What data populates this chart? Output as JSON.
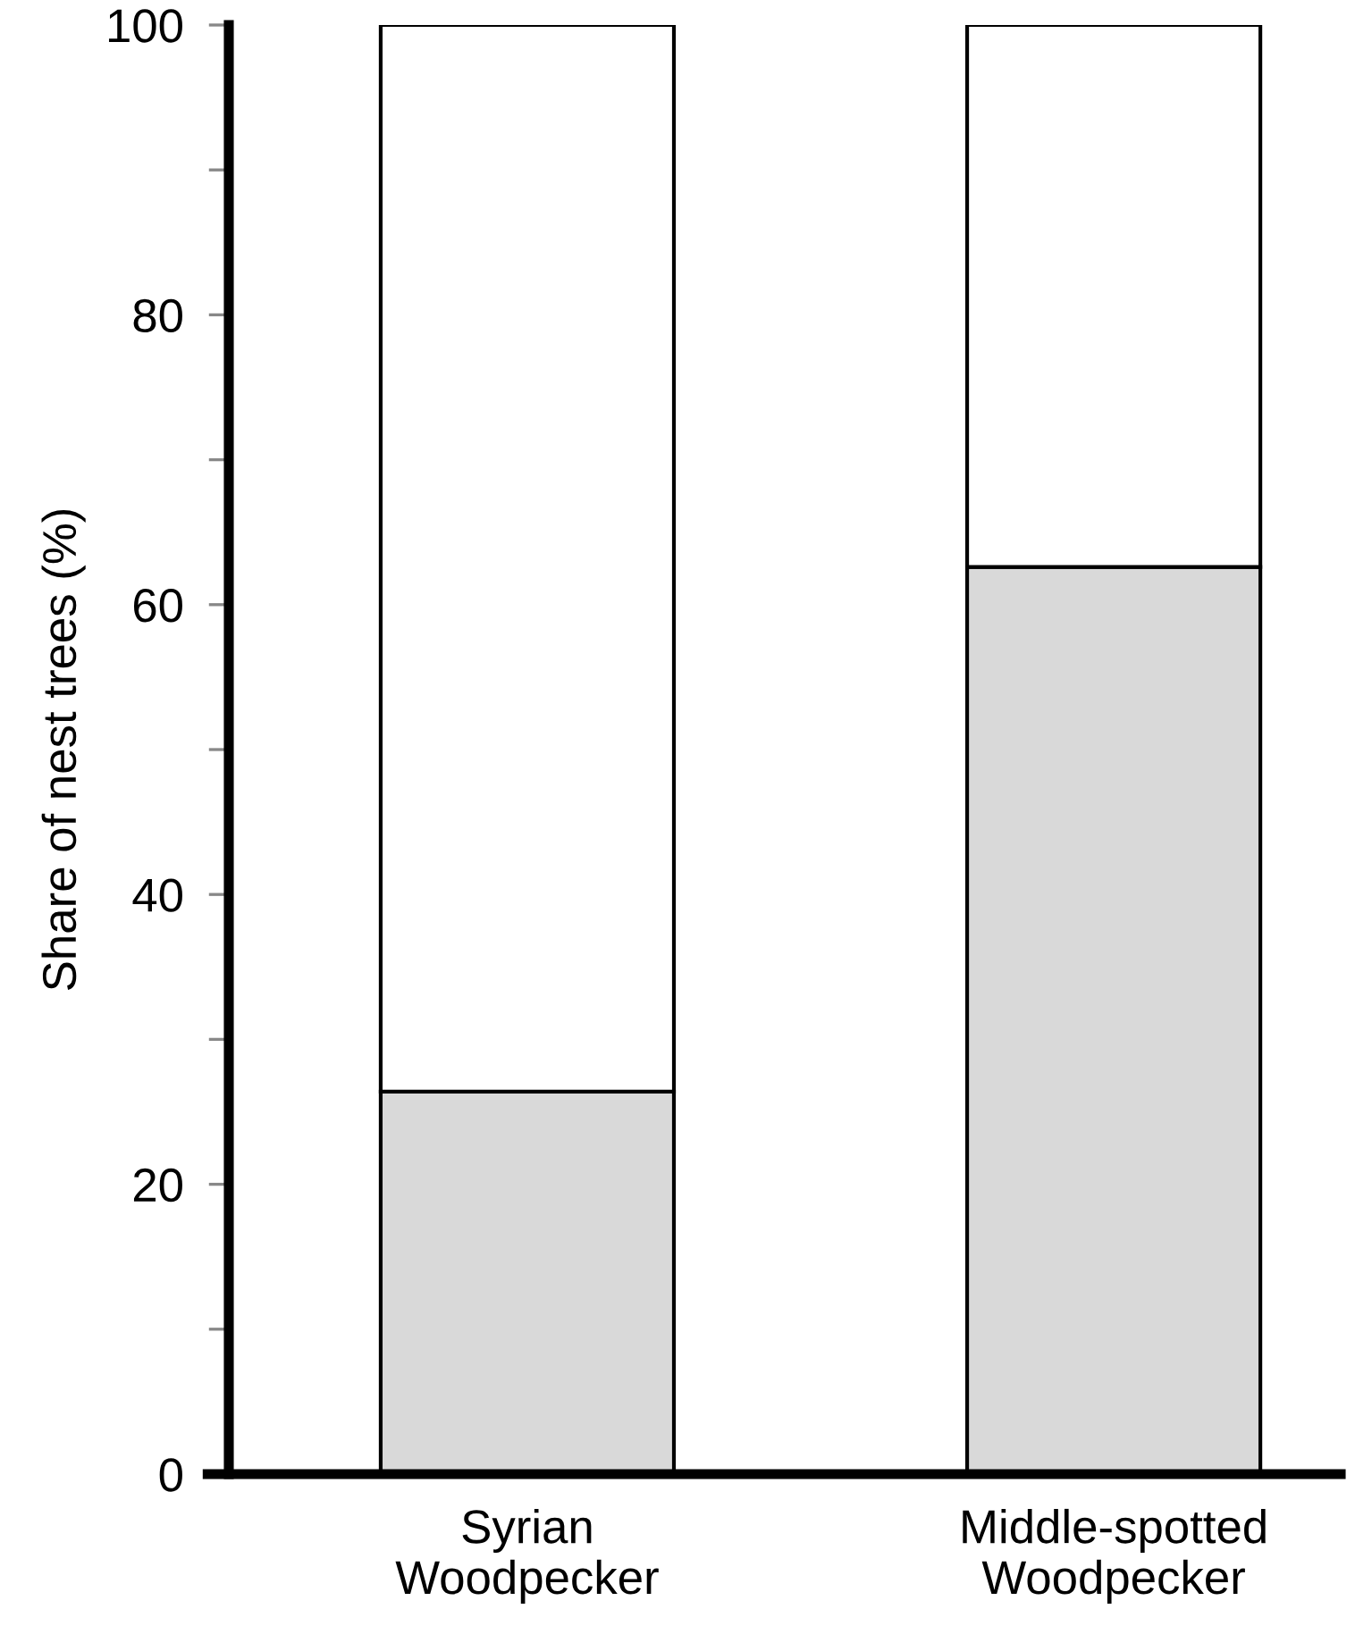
{
  "chart_data": {
    "type": "bar",
    "stacked": true,
    "ylabel": "Share of nest trees (%)",
    "categories": [
      "Syrian\nWoodpecker",
      "Middle-spotted\nWoodpecker"
    ],
    "series": [
      {
        "color": "#d9d9d9",
        "values": [
          26.4,
          62.6
        ]
      },
      {
        "color": "#ffffff",
        "values": [
          73.6,
          37.4
        ]
      }
    ],
    "ylim": [
      0,
      100
    ],
    "yticks": [
      0,
      {
        "value": 10,
        "label": null
      },
      20,
      {
        "value": 30,
        "label": null
      },
      40,
      {
        "value": 50,
        "label": null
      },
      60,
      {
        "value": 70,
        "label": null
      },
      80,
      {
        "value": 90,
        "label": null
      },
      100
    ],
    "grid": false
  }
}
